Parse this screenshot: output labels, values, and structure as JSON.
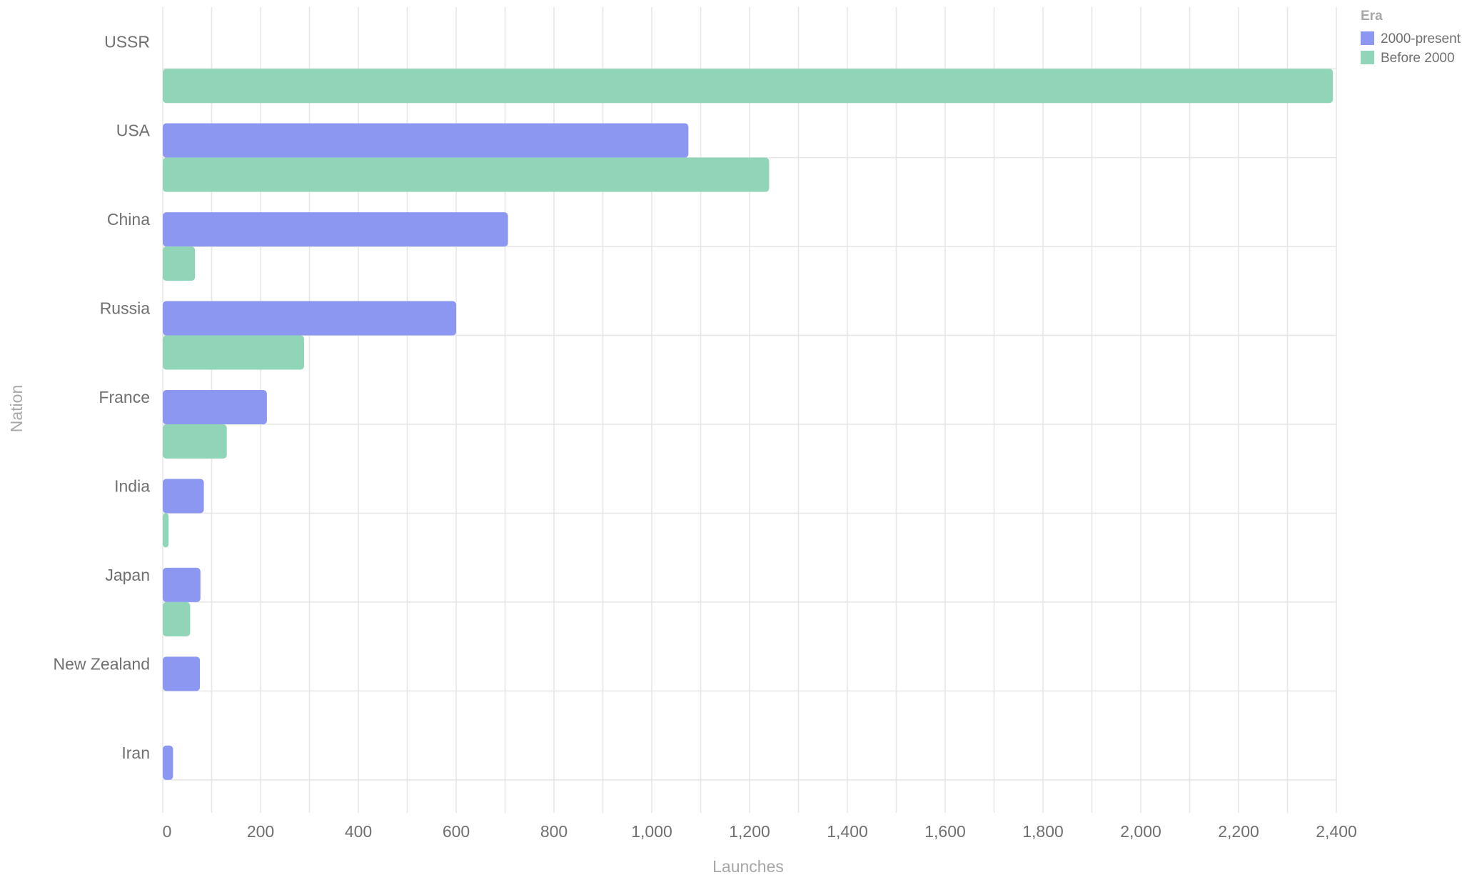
{
  "chart_data": {
    "type": "bar",
    "orientation": "horizontal",
    "xlabel": "Launches",
    "ylabel": "Nation",
    "xlim": [
      0,
      2400
    ],
    "xticks": [
      0,
      200,
      400,
      600,
      800,
      1000,
      1200,
      1400,
      1600,
      1800,
      2000,
      2200,
      2400
    ],
    "xtick_labels": [
      "0",
      "200",
      "400",
      "600",
      "800",
      "1,000",
      "1,200",
      "1,400",
      "1,600",
      "1,800",
      "2,000",
      "2,200",
      "2,400"
    ],
    "categories": [
      "USSR",
      "USA",
      "China",
      "Russia",
      "France",
      "India",
      "Japan",
      "New Zealand",
      "Iran"
    ],
    "series": [
      {
        "name": "2000-present",
        "color": "#8b97f0",
        "values": [
          0,
          1075,
          706,
          600,
          213,
          84,
          77,
          76,
          21
        ]
      },
      {
        "name": "Before 2000",
        "color": "#90d5b8",
        "values": [
          2393,
          1240,
          66,
          289,
          131,
          12,
          56,
          0,
          0
        ]
      }
    ],
    "legend": {
      "title": "Era",
      "placement": "top-right"
    },
    "grid": true
  }
}
